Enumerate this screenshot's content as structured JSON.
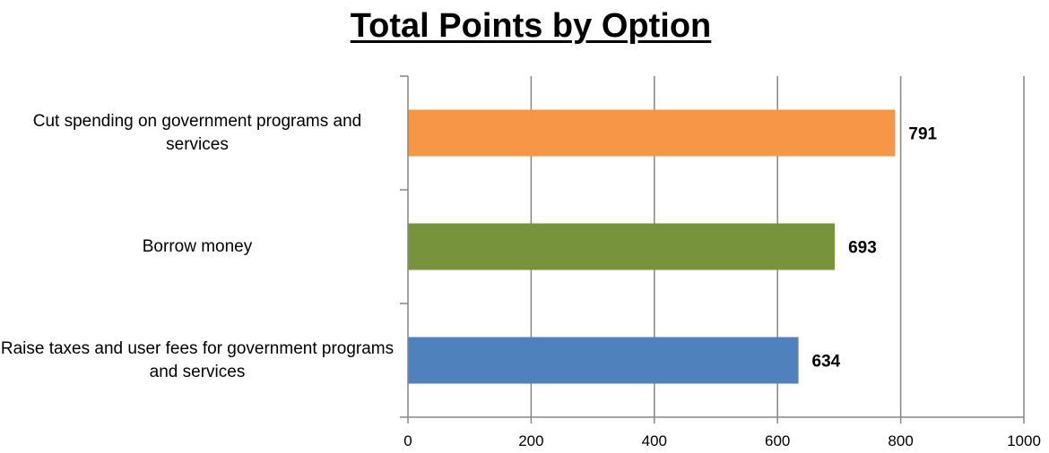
{
  "chart_data": {
    "type": "bar",
    "orientation": "horizontal",
    "title": "Total Points by Option",
    "categories": [
      "Cut spending on government programs and services",
      "Borrow money",
      "Raise taxes and user fees for government programs and services"
    ],
    "values": [
      791,
      693,
      634
    ],
    "colors": [
      "#F79646",
      "#77933C",
      "#4F81BD"
    ],
    "data_labels": [
      "791",
      "693",
      "634"
    ],
    "xlim": [
      0,
      1000
    ],
    "x_ticks": [
      0,
      200,
      400,
      600,
      800,
      1000
    ],
    "grid": "vertical",
    "legend": "none",
    "xlabel": "",
    "ylabel": ""
  }
}
